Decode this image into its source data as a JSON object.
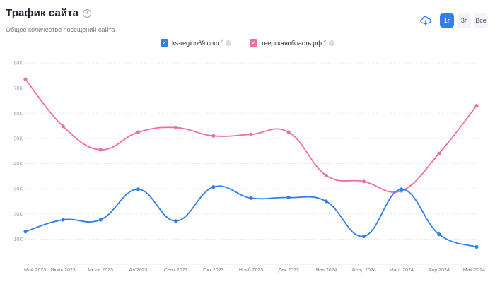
{
  "header": {
    "title": "Трафик сайта",
    "info_icon": "info-icon",
    "subtitle": "Общее количество посещений сайта"
  },
  "controls": {
    "download_icon": "cloud-download-icon",
    "periods": [
      {
        "label": "1г",
        "active": true
      },
      {
        "label": "3г",
        "active": false
      },
      {
        "label": "Все",
        "active": false
      }
    ]
  },
  "colors": {
    "accent": "#2f80ed",
    "series1": "#2f7fe6",
    "series2": "#f06ca8",
    "grid": "#e6e8ec"
  },
  "chart_data": {
    "type": "line",
    "categories": [
      "Май 2023",
      "Июнь 2023",
      "Июль 2023",
      "Ав 2023",
      "Сент 2023",
      "Окт 2023",
      "Нояб 2023",
      "Дек 2023",
      "Янв 2024",
      "Февр 2024",
      "Март 2024",
      "Апр 2024",
      "Май 2024"
    ],
    "series": [
      {
        "name": "ks-region69.com",
        "color": "#2f7fe6",
        "values": [
          13000,
          17700,
          17700,
          29800,
          17200,
          30700,
          26300,
          26500,
          25000,
          11100,
          29800,
          11900,
          6900
        ]
      },
      {
        "name": "тверскаяобласть.рф",
        "color": "#f06ca8",
        "values": [
          73500,
          54800,
          45500,
          52500,
          54300,
          51000,
          51600,
          52500,
          35300,
          32900,
          29200,
          44000,
          63000
        ]
      }
    ],
    "y_ticks": [
      "10K",
      "20K",
      "30K",
      "40K",
      "50K",
      "60K",
      "70K",
      "80K"
    ],
    "ylim": [
      0,
      80000
    ],
    "grid": true,
    "legend_position": "top-center"
  }
}
